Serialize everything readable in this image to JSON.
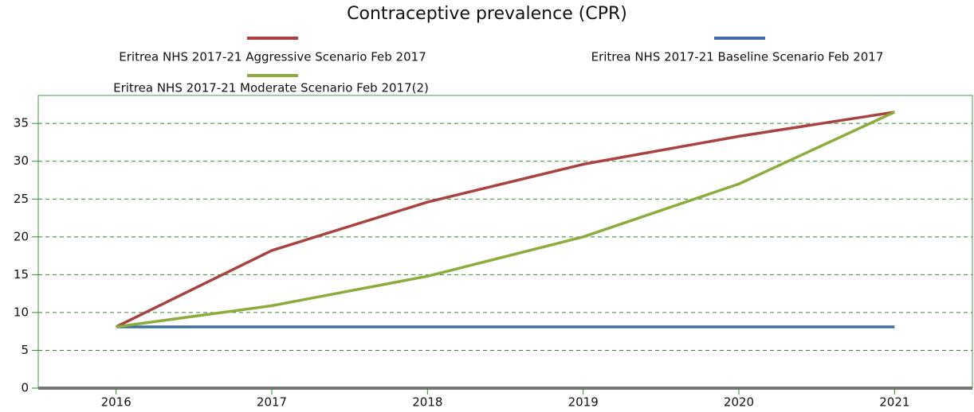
{
  "chart_data": {
    "type": "line",
    "title": "Contraceptive prevalence (CPR)",
    "x": [
      2016,
      2017,
      2018,
      2019,
      2020,
      2021
    ],
    "series": [
      {
        "name": "Eritrea NHS 2017-21 Aggressive Scenario Feb 2017",
        "color": "#a84341",
        "values": [
          8.1,
          18.2,
          24.6,
          29.6,
          33.3,
          36.5
        ]
      },
      {
        "name": "Eritrea NHS 2017-21 Baseline Scenario Feb 2017",
        "color": "#3f6fa3",
        "values": [
          8.1,
          8.1,
          8.1,
          8.1,
          8.1,
          8.1
        ]
      },
      {
        "name": "Eritrea NHS 2017-21 Moderate Scenario Feb 2017(2)",
        "color": "#8eab3e",
        "values": [
          8.1,
          10.9,
          14.8,
          20.0,
          27.0,
          36.5
        ]
      }
    ],
    "xlim": [
      2015.5,
      2021.5
    ],
    "xticks": [
      2016,
      2017,
      2018,
      2019,
      2020,
      2021
    ],
    "ylim": [
      0,
      38.7
    ],
    "yticks": [
      0,
      5,
      10,
      15,
      20,
      25,
      30,
      35
    ],
    "grid": true
  }
}
